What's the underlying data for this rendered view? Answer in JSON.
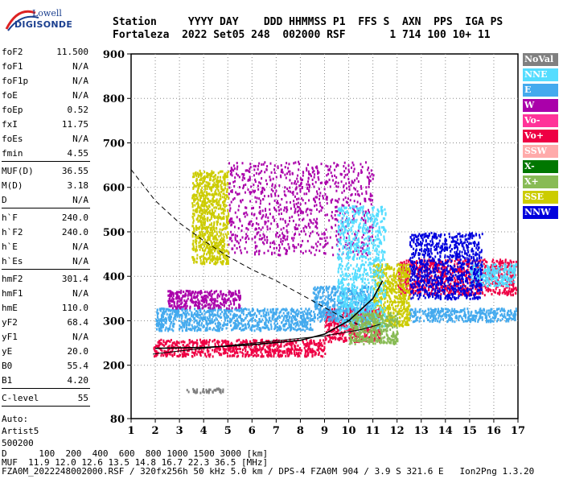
{
  "logo": {
    "line1": "Lowell",
    "line2": "DIGISONDE"
  },
  "header": {
    "line1": "Station     YYYY DAY    DDD HHMMSS P1  FFS S  AXN  PPS  IGA PS",
    "line2": "Fortaleza  2022 Set05 248  002000 RSF       1 714 100 10+ 11"
  },
  "params": {
    "group1": [
      {
        "k": "foF2",
        "v": "11.500"
      },
      {
        "k": "foF1",
        "v": "N/A"
      },
      {
        "k": "foF1p",
        "v": "N/A"
      },
      {
        "k": "foE",
        "v": "N/A"
      },
      {
        "k": "foEp",
        "v": "0.52"
      },
      {
        "k": "fxI",
        "v": "11.75"
      },
      {
        "k": "foEs",
        "v": "N/A"
      },
      {
        "k": "fmin",
        "v": "4.55"
      }
    ],
    "group2": [
      {
        "k": "MUF(D)",
        "v": "36.55"
      },
      {
        "k": "M(D)",
        "v": "3.18"
      },
      {
        "k": "D",
        "v": "N/A"
      }
    ],
    "group3": [
      {
        "k": "h`F",
        "v": "240.0"
      },
      {
        "k": "h`F2",
        "v": "240.0"
      },
      {
        "k": "h`E",
        "v": "N/A"
      },
      {
        "k": "h`Es",
        "v": "N/A"
      }
    ],
    "group4": [
      {
        "k": "hmF2",
        "v": "301.4"
      },
      {
        "k": "hmF1",
        "v": "N/A"
      },
      {
        "k": "hmE",
        "v": "110.0"
      },
      {
        "k": "yF2",
        "v": "68.4"
      },
      {
        "k": "yF1",
        "v": "N/A"
      },
      {
        "k": "yE",
        "v": "20.0"
      },
      {
        "k": "B0",
        "v": "55.4"
      },
      {
        "k": "B1",
        "v": "4.20"
      }
    ],
    "group5": [
      {
        "k": "C-level",
        "v": "55"
      }
    ],
    "auto": [
      "Auto:",
      "Artist5",
      "500200"
    ]
  },
  "legend": [
    {
      "label": "NoVal",
      "color": "#808080"
    },
    {
      "label": "NNE",
      "color": "#55ddff"
    },
    {
      "label": "E",
      "color": "#44aaee"
    },
    {
      "label": "W",
      "color": "#aa00aa"
    },
    {
      "label": "Vo-",
      "color": "#ff3399"
    },
    {
      "label": "Vo+",
      "color": "#ee0044"
    },
    {
      "label": "SSW",
      "color": "#ffaaaa"
    },
    {
      "label": "X-",
      "color": "#007700"
    },
    {
      "label": "X+",
      "color": "#88bb55"
    },
    {
      "label": "SSE",
      "color": "#cccc00"
    },
    {
      "label": "NNW",
      "color": "#0000dd"
    }
  ],
  "footer": {
    "line1": "D      100  200  400  600  800 1000 1500 3000 [km]",
    "line2": "MUF  11.9 12.0 12.6 13.5 14.8 16.7 22.3 36.5 [MHz]",
    "line3": "FZA0M_2022248002000.RSF / 320fx256h 50 kHz 5.0 km / DPS-4 FZA0M 904 / 3.9 S 321.6 E   Ion2Png 1.3.20"
  },
  "chart_data": {
    "type": "scatter",
    "title": "",
    "xlabel": "",
    "ylabel": "",
    "xlim": [
      1,
      17
    ],
    "ylim": [
      80,
      900
    ],
    "x_ticks": [
      "1",
      "2",
      "3",
      "4",
      "5",
      "6",
      "7",
      "8",
      "9",
      "10",
      "11",
      "12",
      "13",
      "14",
      "15",
      "16",
      "17"
    ],
    "y_ticks": [
      "80",
      "200",
      "300",
      "400",
      "500",
      "600",
      "700",
      "800",
      "900"
    ],
    "grid": "dotted",
    "legend_position": "right",
    "series": [
      {
        "name": "Vo+",
        "clusters": [
          {
            "x0": 1.9,
            "x1": 9.0,
            "y0": 222,
            "y1": 260
          },
          {
            "x0": 9.0,
            "x1": 11.3,
            "y0": 255,
            "y1": 330
          },
          {
            "x0": 12.0,
            "x1": 16.9,
            "y0": 360,
            "y1": 440
          }
        ]
      },
      {
        "name": "E",
        "clusters": [
          {
            "x0": 2.0,
            "x1": 8.5,
            "y0": 280,
            "y1": 330
          },
          {
            "x0": 8.5,
            "x1": 11.0,
            "y0": 300,
            "y1": 380
          },
          {
            "x0": 12.5,
            "x1": 16.9,
            "y0": 300,
            "y1": 330
          }
        ]
      },
      {
        "name": "W",
        "clusters": [
          {
            "x0": 2.5,
            "x1": 5.5,
            "y0": 330,
            "y1": 370
          },
          {
            "x0": 5.0,
            "x1": 11.0,
            "y0": 450,
            "y1": 660
          }
        ]
      },
      {
        "name": "SSE",
        "clusters": [
          {
            "x0": 3.5,
            "x1": 5.0,
            "y0": 430,
            "y1": 640
          },
          {
            "x0": 11.0,
            "x1": 12.5,
            "y0": 290,
            "y1": 430
          }
        ]
      },
      {
        "name": "NNE",
        "clusters": [
          {
            "x0": 9.5,
            "x1": 11.5,
            "y0": 280,
            "y1": 560
          },
          {
            "x0": 15.0,
            "x1": 16.9,
            "y0": 380,
            "y1": 430
          }
        ]
      },
      {
        "name": "X+",
        "clusters": [
          {
            "x0": 10.0,
            "x1": 12.0,
            "y0": 250,
            "y1": 320
          }
        ]
      },
      {
        "name": "NNW",
        "clusters": [
          {
            "x0": 12.5,
            "x1": 15.5,
            "y0": 350,
            "y1": 500
          }
        ]
      },
      {
        "name": "NoVal",
        "clusters": [
          {
            "x0": 3.2,
            "x1": 4.8,
            "y0": 140,
            "y1": 150
          }
        ]
      }
    ],
    "curves": [
      {
        "style": "solid",
        "points": [
          [
            1.9,
            225
          ],
          [
            3,
            232
          ],
          [
            5,
            244
          ],
          [
            7,
            255
          ],
          [
            9,
            266
          ],
          [
            10.5,
            280
          ],
          [
            11.3,
            292
          ]
        ]
      },
      {
        "style": "dashed",
        "points": [
          [
            1,
            640
          ],
          [
            2,
            570
          ],
          [
            3,
            520
          ],
          [
            4,
            480
          ],
          [
            5,
            445
          ],
          [
            6,
            415
          ],
          [
            7,
            390
          ],
          [
            8,
            360
          ],
          [
            9,
            330
          ],
          [
            10,
            300
          ],
          [
            10.5,
            290
          ]
        ]
      },
      {
        "style": "black-trace",
        "points": [
          [
            2,
            238
          ],
          [
            4,
            240
          ],
          [
            6,
            246
          ],
          [
            8,
            256
          ],
          [
            9,
            270
          ],
          [
            10,
            300
          ],
          [
            11,
            350
          ],
          [
            11.4,
            390
          ]
        ]
      }
    ]
  }
}
